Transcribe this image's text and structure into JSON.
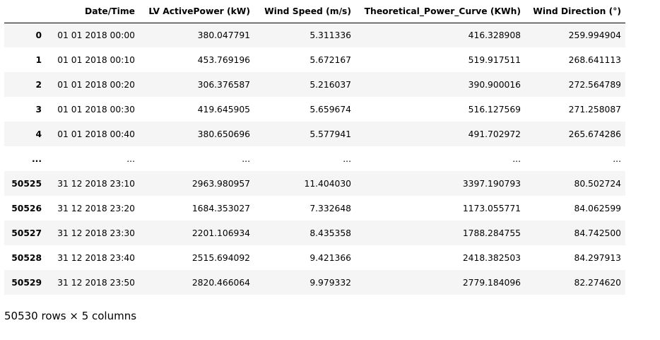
{
  "table": {
    "headers": [
      "",
      "Date/Time",
      "LV ActivePower (kW)",
      "Wind Speed (m/s)",
      "Theoretical_Power_Curve (KWh)",
      "Wind Direction (°)"
    ],
    "rows": [
      [
        "0",
        "01 01 2018 00:00",
        "380.047791",
        "5.311336",
        "416.328908",
        "259.994904"
      ],
      [
        "1",
        "01 01 2018 00:10",
        "453.769196",
        "5.672167",
        "519.917511",
        "268.641113"
      ],
      [
        "2",
        "01 01 2018 00:20",
        "306.376587",
        "5.216037",
        "390.900016",
        "272.564789"
      ],
      [
        "3",
        "01 01 2018 00:30",
        "419.645905",
        "5.659674",
        "516.127569",
        "271.258087"
      ],
      [
        "4",
        "01 01 2018 00:40",
        "380.650696",
        "5.577941",
        "491.702972",
        "265.674286"
      ],
      [
        "...",
        "...",
        "...",
        "...",
        "...",
        "..."
      ],
      [
        "50525",
        "31 12 2018 23:10",
        "2963.980957",
        "11.404030",
        "3397.190793",
        "80.502724"
      ],
      [
        "50526",
        "31 12 2018 23:20",
        "1684.353027",
        "7.332648",
        "1173.055771",
        "84.062599"
      ],
      [
        "50527",
        "31 12 2018 23:30",
        "2201.106934",
        "8.435358",
        "1788.284755",
        "84.742500"
      ],
      [
        "50528",
        "31 12 2018 23:40",
        "2515.694092",
        "9.421366",
        "2418.382503",
        "84.297913"
      ],
      [
        "50529",
        "31 12 2018 23:50",
        "2820.466064",
        "9.979332",
        "2779.184096",
        "82.274620"
      ]
    ]
  },
  "footer": {
    "shape_text": "50530 rows × 5 columns"
  },
  "colors": {
    "stripe": "#f5f5f5",
    "header_border": "#000000"
  }
}
